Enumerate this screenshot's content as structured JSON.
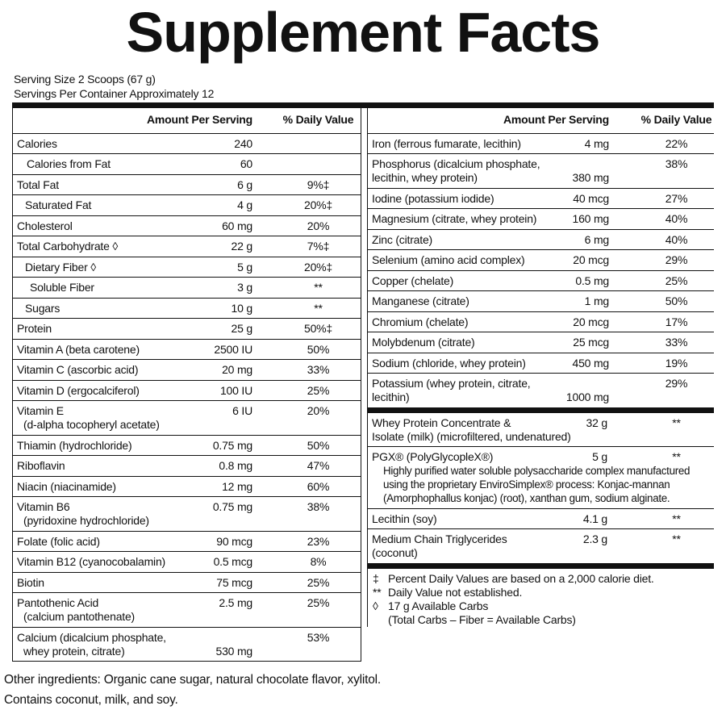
{
  "header": {
    "title": "Supplement Facts",
    "serving_size": "Serving Size 2 Scoops (67 g)",
    "servings": "Servings Per Container Approximately 12"
  },
  "column_headers": {
    "amount": "Amount Per Serving",
    "dv": "% Daily Value"
  },
  "left_rows": [
    {
      "name": "Calories",
      "amount": "240"
    },
    {
      "name": "Calories from Fat",
      "amount": "60"
    },
    {
      "name": "Total Fat",
      "amount": "6 g",
      "dv": "9%‡"
    },
    {
      "name": "Saturated Fat",
      "amount": "4 g",
      "dv": "20%‡"
    },
    {
      "name": "Cholesterol",
      "amount": "60 mg",
      "dv": "20%"
    },
    {
      "name": "Total Carbohydrate ◊",
      "amount": "22 g",
      "dv": "7%‡"
    },
    {
      "name": "Dietary Fiber ◊",
      "amount": "5 g",
      "dv": "20%‡"
    },
    {
      "name": "Soluble Fiber",
      "amount": "3 g",
      "dv": "**"
    },
    {
      "name": "Sugars",
      "amount": "10 g",
      "dv": "**"
    },
    {
      "name": "Protein",
      "amount": "25 g",
      "dv": "50%‡"
    },
    {
      "name": "Vitamin A (beta carotene)",
      "amount": "2500 IU",
      "dv": "50%"
    },
    {
      "name": "Vitamin C (ascorbic acid)",
      "amount": "20 mg",
      "dv": "33%"
    },
    {
      "name": "Vitamin D (ergocalciferol)",
      "amount": "100 IU",
      "dv": "25%"
    },
    {
      "name": [
        "Vitamin E",
        "(d-alpha tocopheryl acetate)"
      ],
      "amount": "6 IU",
      "dv": "20%"
    },
    {
      "name": "Thiamin (hydrochloride)",
      "amount": "0.75 mg",
      "dv": "50%"
    },
    {
      "name": "Riboflavin",
      "amount": "0.8 mg",
      "dv": "47%"
    },
    {
      "name": "Niacin (niacinamide)",
      "amount": "12 mg",
      "dv": "60%"
    },
    {
      "name": [
        "Vitamin B6",
        "(pyridoxine hydrochloride)"
      ],
      "amount": "0.75 mg",
      "dv": "38%"
    },
    {
      "name": "Folate (folic acid)",
      "amount": "90 mcg",
      "dv": "23%"
    },
    {
      "name": "Vitamin B12 (cyanocobalamin)",
      "amount": "0.5 mcg",
      "dv": "8%"
    },
    {
      "name": "Biotin",
      "amount": "75 mcg",
      "dv": "25%"
    },
    {
      "name": [
        "Pantothenic Acid",
        "(calcium pantothenate)"
      ],
      "amount": "2.5 mg",
      "dv": "25%"
    },
    {
      "name": [
        "Calcium (dicalcium phosphate,",
        "whey protein, citrate)"
      ],
      "amount": "530 mg",
      "dv": "53%"
    }
  ],
  "right_rows": [
    {
      "name": "Iron (ferrous fumarate, lecithin)",
      "amount": "4 mg",
      "dv": "22%"
    },
    {
      "name": [
        "Phosphorus (dicalcium phosphate,",
        "lecithin, whey protein)"
      ],
      "amount": "380 mg",
      "dv": "38%"
    },
    {
      "name": "Iodine (potassium iodide)",
      "amount": "40 mcg",
      "dv": "27%"
    },
    {
      "name": "Magnesium (citrate, whey protein)",
      "amount": "160 mg",
      "dv": "40%"
    },
    {
      "name": "Zinc (citrate)",
      "amount": "6 mg",
      "dv": "40%"
    },
    {
      "name": "Selenium (amino acid complex)",
      "amount": "20 mcg",
      "dv": "29%"
    },
    {
      "name": "Copper (chelate)",
      "amount": "0.5 mg",
      "dv": "25%"
    },
    {
      "name": "Manganese (citrate)",
      "amount": "1 mg",
      "dv": "50%"
    },
    {
      "name": "Chromium (chelate)",
      "amount": "20 mcg",
      "dv": "17%"
    },
    {
      "name": "Molybdenum (citrate)",
      "amount": "25 mcg",
      "dv": "33%"
    },
    {
      "name": "Sodium (chloride, whey protein)",
      "amount": "450 mg",
      "dv": "19%"
    },
    {
      "name": [
        "Potassium (whey protein, citrate,",
        "lecithin)"
      ],
      "amount": "1000 mg",
      "dv": "29%"
    }
  ],
  "other_rows": [
    {
      "name": [
        "Whey Protein Concentrate &",
        "Isolate (milk) (microfiltered, undenatured)"
      ],
      "amount": "32 g",
      "dv": "**"
    },
    {
      "name": "PGX® (PolyGlycopleX®)",
      "amount": "5 g",
      "dv": "**",
      "description": [
        "Highly purified water soluble polysaccharide complex manufactured",
        "using the proprietary EnviroSimplex® process: Konjac-mannan",
        "(Amorphophallus konjac) (root), xanthan gum, sodium alginate."
      ]
    },
    {
      "name": "Lecithin (soy)",
      "amount": "4.1 g",
      "dv": "**"
    },
    {
      "name": [
        "Medium Chain Triglycerides",
        "(coconut)"
      ],
      "amount": "2.3 g",
      "dv": "**"
    }
  ],
  "footnotes": [
    {
      "symbol": "‡",
      "text": [
        "Percent Daily Values are based on a 2,000 calorie diet."
      ]
    },
    {
      "symbol": "**",
      "text": [
        "Daily Value not established."
      ]
    },
    {
      "symbol": "◊",
      "text": [
        "17 g Available Carbs",
        "(Total Carbs – Fiber = Available Carbs)"
      ]
    }
  ],
  "footer": [
    "Other ingredients: Organic cane sugar, natural chocolate flavor, xylitol.",
    "Contains coconut, milk, and soy."
  ]
}
